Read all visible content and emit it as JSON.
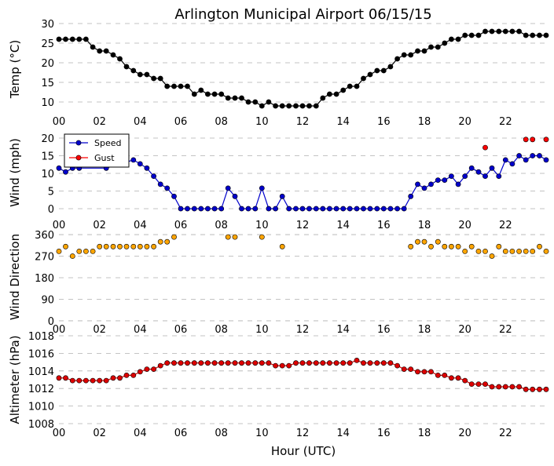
{
  "chart_data": {
    "type": "line",
    "title": "Arlington Municipal Airport 06/15/15",
    "xlabel": "Hour (UTC)",
    "x_ticks": [
      "00",
      "02",
      "04",
      "06",
      "08",
      "10",
      "12",
      "14",
      "16",
      "18",
      "20",
      "22"
    ],
    "x_tick_values": [
      0,
      2,
      4,
      6,
      8,
      10,
      12,
      14,
      16,
      18,
      20,
      22
    ],
    "xlim": [
      0,
      24
    ],
    "panels": [
      {
        "id": "temp",
        "ylabel": "Temp (°C)",
        "ylim": [
          7,
          30
        ],
        "yticks": [
          10,
          15,
          20,
          25,
          30
        ],
        "series": [
          {
            "name": "Temp",
            "color": "#000000",
            "line": true,
            "x": [
              0.0,
              0.33,
              0.67,
              1.0,
              1.33,
              1.67,
              2.0,
              2.33,
              2.67,
              3.0,
              3.33,
              3.67,
              4.0,
              4.33,
              4.67,
              5.0,
              5.33,
              5.67,
              6.0,
              6.33,
              6.67,
              7.0,
              7.33,
              7.67,
              8.0,
              8.33,
              8.67,
              9.0,
              9.33,
              9.67,
              10.0,
              10.33,
              10.67,
              11.0,
              11.33,
              11.67,
              12.0,
              12.33,
              12.67,
              13.0,
              13.33,
              13.67,
              14.0,
              14.33,
              14.67,
              15.0,
              15.33,
              15.67,
              16.0,
              16.33,
              16.67,
              17.0,
              17.33,
              17.67,
              18.0,
              18.33,
              18.67,
              19.0,
              19.33,
              19.67,
              20.0,
              20.33,
              20.67,
              21.0,
              21.33,
              21.67,
              22.0,
              22.33,
              22.67,
              23.0,
              23.33,
              23.67,
              24.0
            ],
            "y": [
              26,
              26,
              26,
              26,
              26,
              24,
              23,
              23,
              22,
              21,
              19,
              18,
              17,
              17,
              16,
              16,
              14,
              14,
              14,
              14,
              12,
              13,
              12,
              12,
              12,
              11,
              11,
              11,
              10,
              10,
              9,
              10,
              9,
              9,
              9,
              9,
              9,
              9,
              9,
              11,
              12,
              12,
              13,
              14,
              14,
              16,
              17,
              18,
              18,
              19,
              21,
              22,
              22,
              23,
              23,
              24,
              24,
              25,
              26,
              26,
              27,
              27,
              27,
              28,
              28,
              28,
              28,
              28,
              28,
              27,
              27,
              27,
              27
            ]
          }
        ]
      },
      {
        "id": "wind",
        "ylabel": "Wind (mph)",
        "ylim": [
          -2,
          22
        ],
        "yticks": [
          0,
          5,
          10,
          15,
          20
        ],
        "legend": "top-left",
        "series": [
          {
            "name": "Speed",
            "color": "#0000cc",
            "line": true,
            "x": [
              0.0,
              0.33,
              0.67,
              1.0,
              2.33,
              3.67,
              4.0,
              4.33,
              4.67,
              5.0,
              5.33,
              5.67,
              6.0,
              6.33,
              6.67,
              7.0,
              7.33,
              7.67,
              8.0,
              8.33,
              8.67,
              9.0,
              9.33,
              9.67,
              10.0,
              10.33,
              10.67,
              11.0,
              11.33,
              11.67,
              12.0,
              12.33,
              12.67,
              13.0,
              13.33,
              13.67,
              14.0,
              14.33,
              14.67,
              15.0,
              15.33,
              15.67,
              16.0,
              16.33,
              16.67,
              17.0,
              17.33,
              17.67,
              18.0,
              18.33,
              18.67,
              19.0,
              19.33,
              19.67,
              20.0,
              20.33,
              20.67,
              21.0,
              21.33,
              21.67,
              22.0,
              22.33,
              22.67,
              23.0,
              23.33,
              23.67,
              24.0
            ],
            "y": [
              11.5,
              10.4,
              11.5,
              11.5,
              11.5,
              13.8,
              12.7,
              11.5,
              9.2,
              6.9,
              5.8,
              3.5,
              0,
              0,
              0,
              0,
              0,
              0,
              0,
              5.8,
              3.5,
              0,
              0,
              0,
              5.8,
              0,
              0,
              3.5,
              0,
              0,
              0,
              0,
              0,
              0,
              0,
              0,
              0,
              0,
              0,
              0,
              0,
              0,
              0,
              0,
              0,
              0,
              3.5,
              6.9,
              5.8,
              6.9,
              8.1,
              8.1,
              9.2,
              6.9,
              9.2,
              11.5,
              10.4,
              9.2,
              11.5,
              9.2,
              13.8,
              12.7,
              15.0,
              13.8,
              15.0,
              15.0,
              13.8
            ]
          },
          {
            "name": "Gust",
            "color": "#ff0000",
            "line": false,
            "x": [
              21.0,
              23.0,
              23.33,
              24.0
            ],
            "y": [
              17.3,
              19.6,
              19.6,
              19.6
            ]
          }
        ]
      },
      {
        "id": "wdir",
        "ylabel": "Wind Direction",
        "ylim": [
          -10,
          370
        ],
        "yticks": [
          0,
          90,
          180,
          270,
          360
        ],
        "series": [
          {
            "name": "Direction",
            "color": "#ffa500",
            "line": false,
            "x": [
              0.0,
              0.33,
              0.67,
              1.0,
              1.33,
              1.67,
              2.0,
              2.33,
              2.67,
              3.0,
              3.33,
              3.67,
              4.0,
              4.33,
              4.67,
              5.0,
              5.33,
              5.67,
              8.33,
              8.67,
              10.0,
              11.0,
              17.33,
              17.67,
              18.0,
              18.33,
              18.67,
              19.0,
              19.33,
              19.67,
              20.0,
              20.33,
              20.67,
              21.0,
              21.33,
              21.67,
              22.0,
              22.33,
              22.67,
              23.0,
              23.33,
              23.67,
              24.0
            ],
            "y": [
              290,
              310,
              270,
              290,
              290,
              290,
              310,
              310,
              310,
              310,
              310,
              310,
              310,
              310,
              310,
              330,
              330,
              350,
              350,
              350,
              350,
              310,
              310,
              330,
              330,
              310,
              330,
              310,
              310,
              310,
              290,
              310,
              290,
              290,
              270,
              310,
              290,
              290,
              290,
              290,
              290,
              310,
              290
            ]
          }
        ]
      },
      {
        "id": "alt",
        "ylabel": "Altimeter (hPa)",
        "ylim": [
          1008,
          1018
        ],
        "yticks": [
          1008,
          1010,
          1012,
          1014,
          1016,
          1018
        ],
        "series": [
          {
            "name": "Altimeter",
            "color": "#dd0000",
            "line": true,
            "x": [
              0.0,
              0.33,
              0.67,
              1.0,
              1.33,
              1.67,
              2.0,
              2.33,
              2.67,
              3.0,
              3.33,
              3.67,
              4.0,
              4.33,
              4.67,
              5.0,
              5.33,
              5.67,
              6.0,
              6.33,
              6.67,
              7.0,
              7.33,
              7.67,
              8.0,
              8.33,
              8.67,
              9.0,
              9.33,
              9.67,
              10.0,
              10.33,
              10.67,
              11.0,
              11.33,
              11.67,
              12.0,
              12.33,
              12.67,
              13.0,
              13.33,
              13.67,
              14.0,
              14.33,
              14.67,
              15.0,
              15.33,
              15.67,
              16.0,
              16.33,
              16.67,
              17.0,
              17.33,
              17.67,
              18.0,
              18.33,
              18.67,
              19.0,
              19.33,
              19.67,
              20.0,
              20.33,
              20.67,
              21.0,
              21.33,
              21.67,
              22.0,
              22.33,
              22.67,
              23.0,
              23.33,
              23.67,
              24.0
            ],
            "y": [
              1013.2,
              1013.2,
              1012.9,
              1012.9,
              1012.9,
              1012.9,
              1012.9,
              1012.9,
              1013.2,
              1013.2,
              1013.5,
              1013.5,
              1013.9,
              1014.2,
              1014.2,
              1014.6,
              1014.9,
              1014.9,
              1014.9,
              1014.9,
              1014.9,
              1014.9,
              1014.9,
              1014.9,
              1014.9,
              1014.9,
              1014.9,
              1014.9,
              1014.9,
              1014.9,
              1014.9,
              1014.9,
              1014.6,
              1014.6,
              1014.6,
              1014.9,
              1014.9,
              1014.9,
              1014.9,
              1014.9,
              1014.9,
              1014.9,
              1014.9,
              1014.9,
              1015.2,
              1014.9,
              1014.9,
              1014.9,
              1014.9,
              1014.9,
              1014.6,
              1014.2,
              1014.2,
              1013.9,
              1013.9,
              1013.9,
              1013.5,
              1013.5,
              1013.2,
              1013.2,
              1012.9,
              1012.5,
              1012.5,
              1012.5,
              1012.2,
              1012.2,
              1012.2,
              1012.2,
              1012.2,
              1011.9,
              1011.9,
              1011.9,
              1011.9
            ]
          }
        ]
      }
    ]
  }
}
